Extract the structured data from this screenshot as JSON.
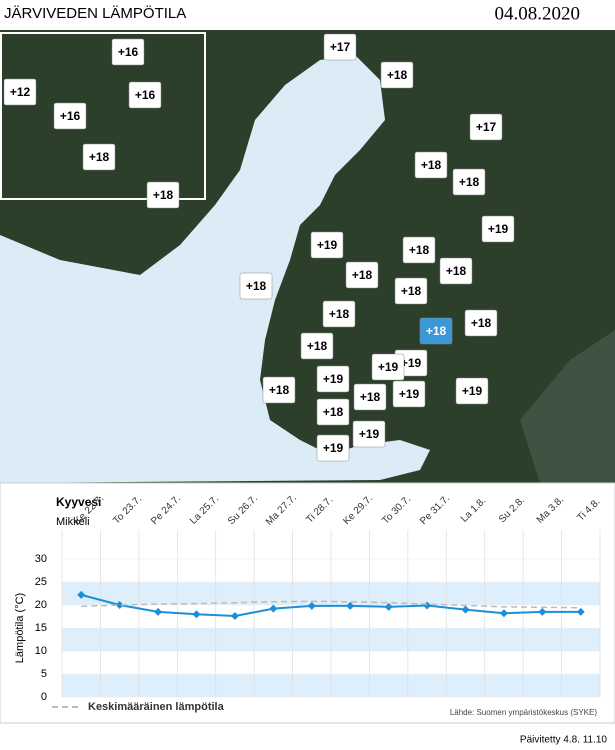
{
  "header": {
    "title": "JÄRVIVEDEN LÄMPÖTILA",
    "date": "04.08.2020"
  },
  "map": {
    "labels": [
      "+16",
      "+12",
      "+16",
      "+16",
      "+18",
      "+18",
      "+17",
      "+18",
      "+17",
      "+18",
      "+18",
      "+19",
      "+19",
      "+18",
      "+18",
      "+18",
      "+18",
      "+18",
      "+18",
      "+18",
      "+18",
      "+18",
      "+19",
      "+18",
      "+19",
      "+19",
      "+18",
      "+19",
      "+19",
      "+18",
      "+19",
      "+19"
    ]
  },
  "chart_data": {
    "type": "line",
    "title": "Kyyvesi",
    "subtitle": "Mikkeli",
    "y_label": "Lämpötila (°C)",
    "categories": [
      "Ke 22.7.",
      "To 23.7.",
      "Pe 24.7.",
      "La 25.7.",
      "Su 26.7.",
      "Ma 27.7.",
      "Ti 28.7.",
      "Ke 29.7.",
      "To 30.7.",
      "Pe 31.7.",
      "La 1.8.",
      "Su 2.8.",
      "Ma 3.8.",
      "Ti 4.8."
    ],
    "series": [
      {
        "name": "Lämpötila",
        "color": "#1e8fd6",
        "values": [
          22.2,
          20.0,
          18.5,
          18.0,
          17.6,
          19.2,
          19.8,
          19.8,
          19.6,
          19.9,
          19.0,
          18.2,
          18.5,
          18.5
        ]
      },
      {
        "name": "Keskimääräinen lämpötila",
        "color": "#bbbbbb",
        "values": [
          19.7,
          20.0,
          20.2,
          20.3,
          20.5,
          20.7,
          20.8,
          20.7,
          20.5,
          20.2,
          19.9,
          19.6,
          19.5,
          19.4
        ]
      }
    ],
    "ylim": [
      0,
      30
    ],
    "yticks": [
      0,
      5,
      10,
      15,
      20,
      25,
      30
    ],
    "source": "Lähde: Suomen ympäristökeskus (SYKE)"
  },
  "footer": {
    "updated": "Päivitetty 4.8. 11.10"
  }
}
